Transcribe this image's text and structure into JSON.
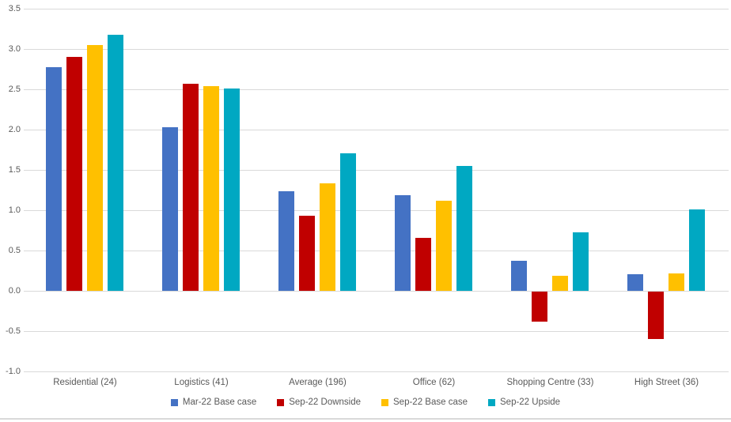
{
  "chart_data": {
    "type": "bar",
    "title": "",
    "xlabel": "",
    "ylabel": "",
    "categories": [
      "Residential (24)",
      "Logistics (41)",
      "Average (196)",
      "Office (62)",
      "Shopping Centre (33)",
      "High Street (36)"
    ],
    "series": [
      {
        "name": "Mar-22 Base case",
        "color": "#4472C4",
        "values": [
          2.77,
          2.03,
          1.24,
          1.19,
          0.37,
          0.21
        ]
      },
      {
        "name": "Sep-22 Downside",
        "color": "#C00000",
        "values": [
          2.9,
          2.57,
          0.93,
          0.66,
          -0.37,
          -0.59
        ]
      },
      {
        "name": "Sep-22 Base case",
        "color": "#FFC000",
        "values": [
          3.05,
          2.54,
          1.33,
          1.12,
          0.19,
          0.22
        ]
      },
      {
        "name": "Sep-22 Upside",
        "color": "#00A8C2",
        "values": [
          3.18,
          2.51,
          1.71,
          1.55,
          0.73,
          1.01
        ]
      }
    ],
    "y_axis": {
      "min": -1.0,
      "max": 3.5,
      "step": 0.5,
      "tick_labels": [
        "3.5",
        "3.0",
        "2.5",
        "2.0",
        "1.5",
        "1.0",
        "0.5",
        "0.0",
        "-0.5",
        "-1.0"
      ]
    },
    "grid": true,
    "legend_position": "bottom",
    "colors": {
      "text": "#595959",
      "gridline": "#D9D9D9",
      "bottom_border": "#D9D9D9",
      "background": "#FFFFFF"
    }
  }
}
